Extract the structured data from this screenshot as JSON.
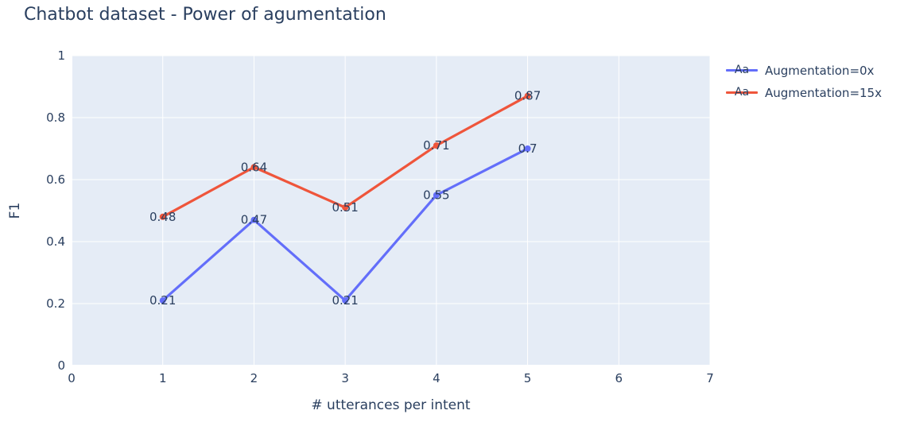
{
  "title": "Chatbot dataset - Power of agumentation",
  "colors": {
    "text": "#2a3f5f",
    "plot_background": "#e5ecf6",
    "gridline": "#ffffff",
    "paper_background": "#ffffff",
    "series_blue": "#636efa",
    "series_red": "#ef553b"
  },
  "legend": {
    "marker_text": "Aa",
    "items": [
      {
        "label": "Augmentation=0x",
        "color": "#636efa"
      },
      {
        "label": "Augmentation=15x",
        "color": "#ef553b"
      }
    ]
  },
  "chart_data": {
    "type": "line",
    "title": "Chatbot dataset - Power of agumentation",
    "xlabel": "# utterances per intent",
    "ylabel": "F1",
    "xlim": [
      0,
      7
    ],
    "ylim": [
      0,
      1
    ],
    "xticks": [
      0,
      1,
      2,
      3,
      4,
      5,
      6,
      7
    ],
    "xtick_labels": [
      "0",
      "1",
      "2",
      "3",
      "4",
      "5",
      "6",
      "7"
    ],
    "yticks": [
      0,
      0.2,
      0.4,
      0.6,
      0.8,
      1
    ],
    "ytick_labels": [
      "0",
      "0.2",
      "0.4",
      "0.6",
      "0.8",
      "1"
    ],
    "grid": true,
    "legend_position": "top-right",
    "x": [
      1,
      2,
      3,
      4,
      5
    ],
    "series": [
      {
        "name": "Augmentation=0x",
        "color": "#636efa",
        "values": [
          0.21,
          0.47,
          0.21,
          0.55,
          0.7
        ],
        "point_labels": [
          "0.21",
          "0.47",
          "0.21",
          "0.55",
          "0.7"
        ]
      },
      {
        "name": "Augmentation=15x",
        "color": "#ef553b",
        "values": [
          0.48,
          0.64,
          0.51,
          0.71,
          0.87
        ],
        "point_labels": [
          "0.48",
          "0.64",
          "0.51",
          "0.71",
          "0.87"
        ]
      }
    ]
  }
}
